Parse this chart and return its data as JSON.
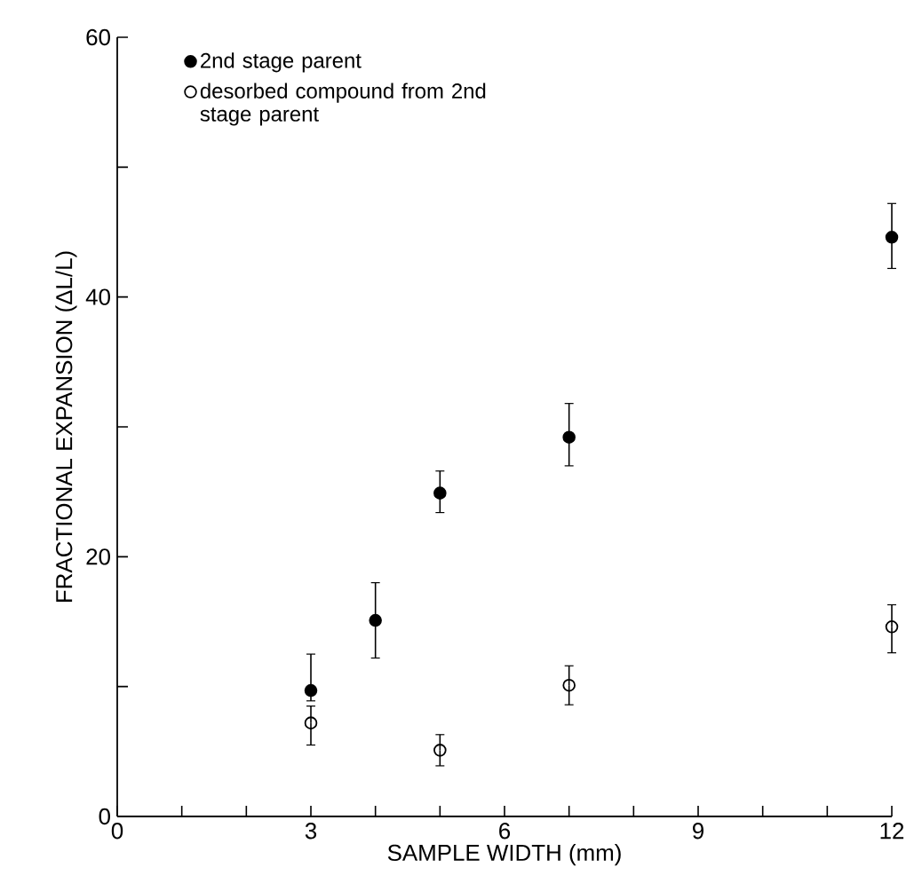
{
  "chart_data": {
    "type": "scatter",
    "xlabel": "SAMPLE WIDTH (mm)",
    "ylabel": "FRACTIONAL EXPANSION (ΔL/L)",
    "xlim": [
      0,
      12
    ],
    "ylim": [
      0,
      60
    ],
    "xticks": [
      0,
      {
        "value": 1,
        "label": null
      },
      {
        "value": 2,
        "label": null
      },
      3,
      {
        "value": 4,
        "label": null
      },
      {
        "value": 5,
        "label": null
      },
      6,
      {
        "value": 7,
        "label": null
      },
      {
        "value": 8,
        "label": null
      },
      9,
      {
        "value": 10,
        "label": null
      },
      {
        "value": 11,
        "label": null
      },
      12
    ],
    "yticks": [
      0,
      {
        "value": 10,
        "label": null
      },
      20,
      {
        "value": 30,
        "label": null
      },
      40,
      {
        "value": 50,
        "label": null
      },
      60
    ],
    "grid": false,
    "legend": "top left",
    "series": [
      {
        "name": "2nd stage parent",
        "color": "#000000",
        "marker": "circle",
        "x": [
          3,
          4,
          5,
          7,
          12
        ],
        "values": [
          9.7,
          15.1,
          24.9,
          29.2,
          44.6
        ],
        "errors": [
          [
            8.9,
            12.5
          ],
          [
            12.2,
            18.0
          ],
          [
            23.4,
            26.6
          ],
          [
            27.0,
            31.8
          ],
          [
            42.2,
            47.2
          ]
        ]
      },
      {
        "name": "desorbed compound from 2nd stage parent",
        "color": "#000000",
        "marker": "circle open",
        "x": [
          3,
          5,
          7,
          12
        ],
        "values": [
          7.2,
          5.1,
          10.1,
          14.6
        ],
        "errors": [
          [
            5.5,
            8.5
          ],
          [
            3.9,
            6.3
          ],
          [
            8.6,
            11.6
          ],
          [
            12.6,
            16.3
          ]
        ]
      }
    ]
  }
}
